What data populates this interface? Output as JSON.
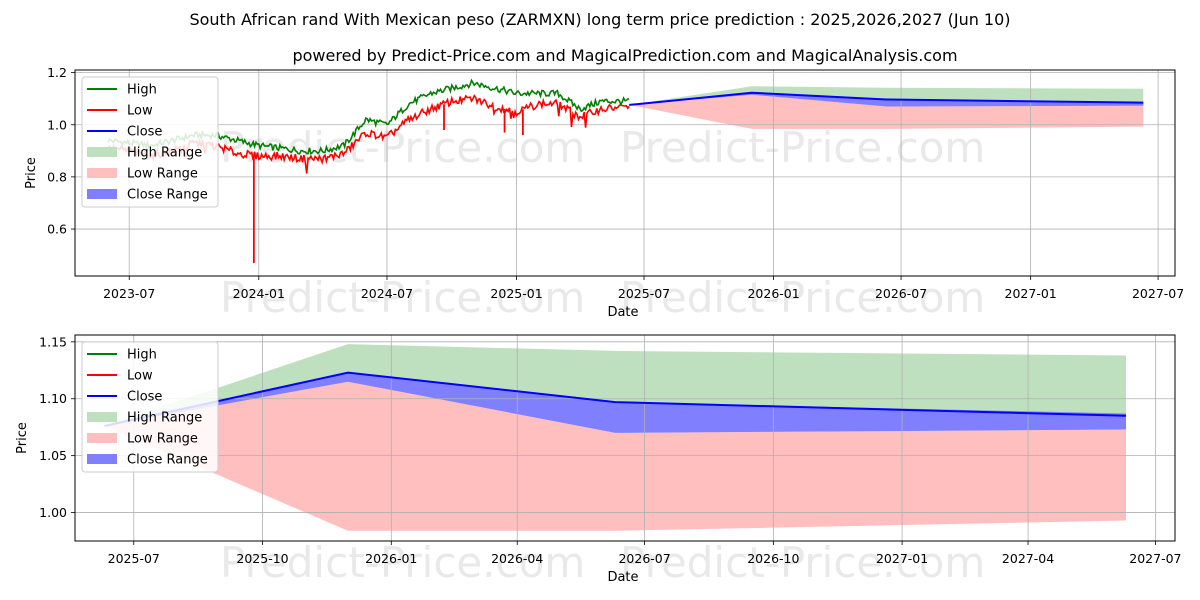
{
  "title": "South African rand With Mexican peso (ZARMXN) long term price prediction : 2025,2026,2027 (Jun 10)",
  "subtitle": "powered by Predict-Price.com and MagicalPrediction.com and MagicalAnalysis.com",
  "watermark": "Predict-Price.com",
  "colors": {
    "high": "#008000",
    "low": "#ff0000",
    "close": "#0000ff",
    "high_range": "#bfe0bf",
    "low_range": "#ffbfbf",
    "close_range": "#8080ff",
    "grid": "#b0b0b0"
  },
  "chart_data": [
    {
      "type": "line",
      "xlabel": "Date",
      "ylabel": "Price",
      "xlim": [
        "2023-04-15",
        "2027-07-25"
      ],
      "ylim": [
        0.42,
        1.21
      ],
      "x_ticks": [
        "2023-07",
        "2024-01",
        "2024-07",
        "2025-01",
        "2025-07",
        "2026-01",
        "2026-07",
        "2027-01",
        "2027-07"
      ],
      "y_ticks": [
        "0.6",
        "0.8",
        "1.0",
        "1.2"
      ],
      "grid": true,
      "legend_position": "top-left",
      "legend": [
        "High",
        "Low",
        "Close",
        "High Range",
        "Low Range",
        "Close Range"
      ],
      "history": {
        "dates": [
          "2023-06-01",
          "2023-07-01",
          "2023-08-01",
          "2023-09-01",
          "2023-10-01",
          "2023-11-01",
          "2023-12-01",
          "2024-01-01",
          "2024-02-01",
          "2024-03-01",
          "2024-04-01",
          "2024-05-01",
          "2024-06-01",
          "2024-07-01",
          "2024-08-01",
          "2024-09-01",
          "2024-10-01",
          "2024-11-01",
          "2024-12-01",
          "2025-01-01",
          "2025-02-01",
          "2025-03-01",
          "2025-04-01",
          "2025-05-01",
          "2025-06-10"
        ],
        "high": [
          0.94,
          0.93,
          0.92,
          0.94,
          0.96,
          0.96,
          0.94,
          0.92,
          0.91,
          0.9,
          0.9,
          0.92,
          1.02,
          1.0,
          1.08,
          1.12,
          1.14,
          1.16,
          1.14,
          1.12,
          1.12,
          1.12,
          1.06,
          1.09,
          1.09
        ],
        "low": [
          0.91,
          0.9,
          0.88,
          0.9,
          0.93,
          0.92,
          0.89,
          0.88,
          0.88,
          0.87,
          0.87,
          0.89,
          0.97,
          0.95,
          1.02,
          1.06,
          1.09,
          1.1,
          1.07,
          1.05,
          1.08,
          1.08,
          1.03,
          1.06,
          1.07
        ],
        "low_spikes": [
          {
            "date": "2023-12-25",
            "value": 0.47
          },
          {
            "date": "2024-09-20",
            "value": 0.98
          },
          {
            "date": "2024-12-15",
            "value": 0.97
          },
          {
            "date": "2025-01-10",
            "value": 0.96
          }
        ]
      },
      "forecast": {
        "dates": [
          "2025-06-10",
          "2025-12-01",
          "2026-06-10",
          "2027-06-10"
        ],
        "close": [
          1.076,
          1.123,
          1.097,
          1.085
        ],
        "high_range": [
          [
            1.076,
            1.076
          ],
          [
            1.115,
            1.148
          ],
          [
            1.07,
            1.142
          ],
          [
            1.073,
            1.138
          ]
        ],
        "low_range": [
          [
            1.076,
            1.076
          ],
          [
            0.984,
            1.115
          ],
          [
            0.984,
            1.07
          ],
          [
            0.993,
            1.073
          ]
        ],
        "close_range": [
          [
            1.076,
            1.076
          ],
          [
            1.115,
            1.123
          ],
          [
            1.07,
            1.097
          ],
          [
            1.073,
            1.087
          ]
        ]
      }
    },
    {
      "type": "area",
      "xlabel": "Date",
      "ylabel": "Price",
      "xlim": [
        "2025-05-20",
        "2027-07-15"
      ],
      "ylim": [
        0.975,
        1.156
      ],
      "x_ticks": [
        "2025-07",
        "2025-10",
        "2026-01",
        "2026-04",
        "2026-07",
        "2026-10",
        "2027-01",
        "2027-04",
        "2027-07"
      ],
      "y_ticks": [
        "1.00",
        "1.05",
        "1.10",
        "1.15"
      ],
      "grid": true,
      "legend_position": "top-left",
      "legend": [
        "High",
        "Low",
        "Close",
        "High Range",
        "Low Range",
        "Close Range"
      ],
      "forecast": {
        "dates": [
          "2025-06-10",
          "2025-12-01",
          "2026-06-10",
          "2027-06-10"
        ],
        "close": [
          1.076,
          1.123,
          1.097,
          1.085
        ],
        "high_range": [
          [
            1.076,
            1.076
          ],
          [
            1.115,
            1.148
          ],
          [
            1.07,
            1.142
          ],
          [
            1.073,
            1.138
          ]
        ],
        "low_range": [
          [
            1.076,
            1.076
          ],
          [
            0.984,
            1.115
          ],
          [
            0.984,
            1.07
          ],
          [
            0.993,
            1.073
          ]
        ],
        "close_range": [
          [
            1.076,
            1.076
          ],
          [
            1.115,
            1.123
          ],
          [
            1.07,
            1.097
          ],
          [
            1.073,
            1.087
          ]
        ]
      }
    }
  ]
}
